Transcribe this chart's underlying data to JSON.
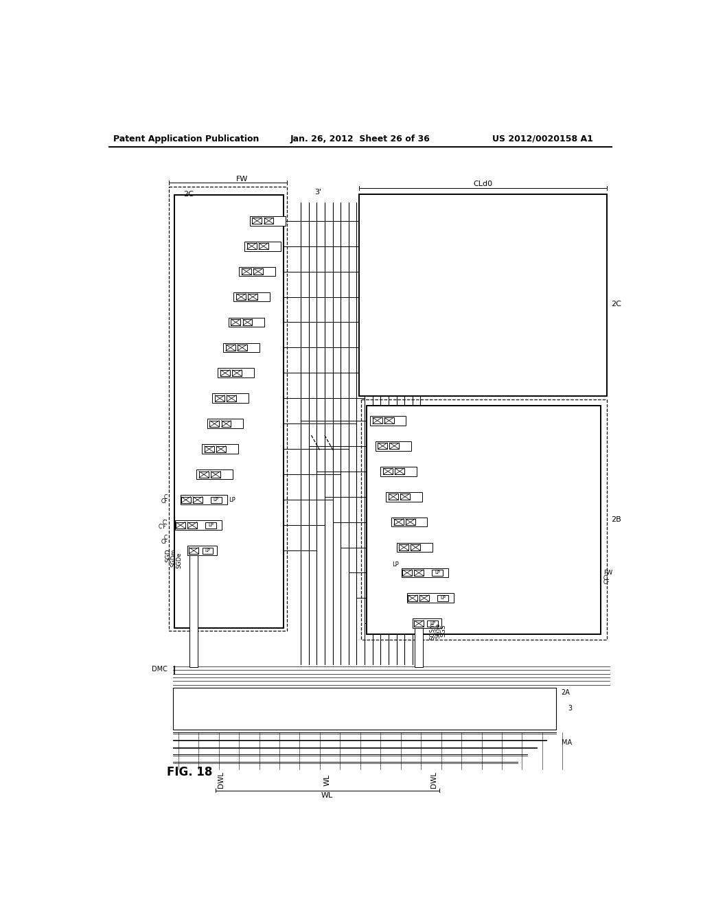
{
  "header_left": "Patent Application Publication",
  "header_center": "Jan. 26, 2012  Sheet 26 of 36",
  "header_right": "US 2012/0020158 A1",
  "fig_label": "FIG. 18",
  "bg_color": "#ffffff"
}
